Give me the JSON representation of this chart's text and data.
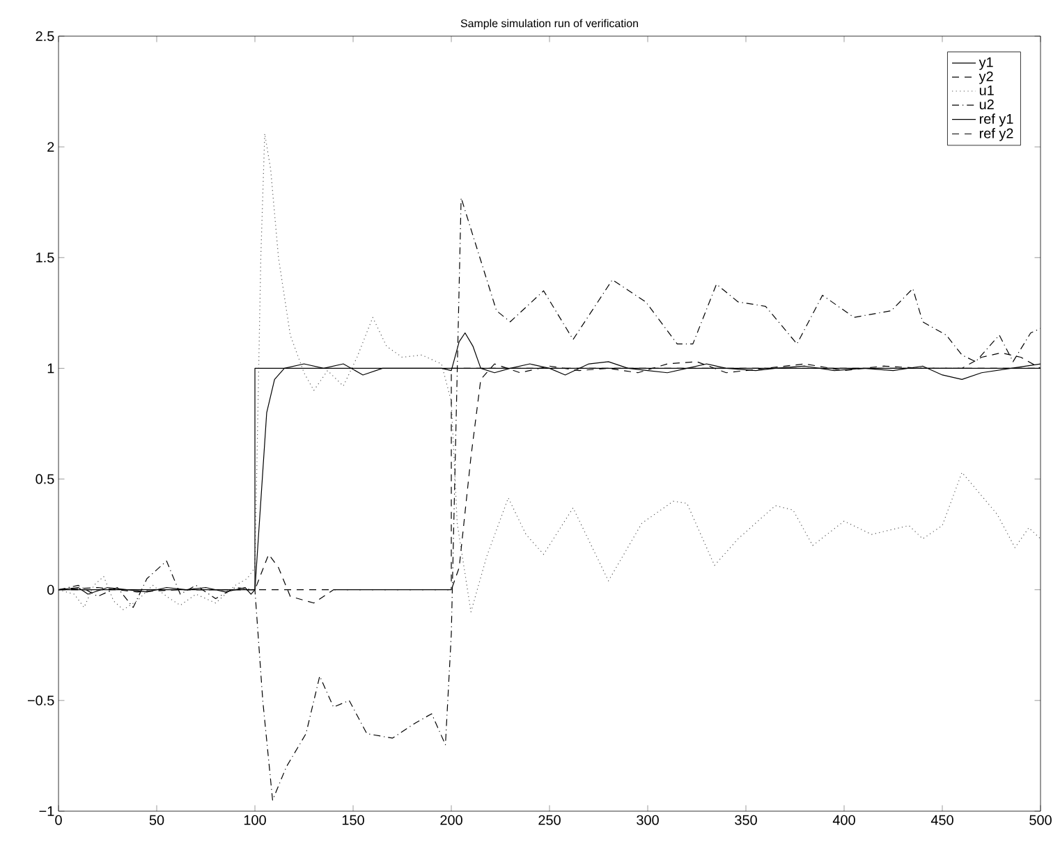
{
  "chart_data": {
    "type": "line",
    "title": "Sample simulation run of verification",
    "xlim": [
      0,
      500
    ],
    "ylim": [
      -1,
      2.5
    ],
    "xticks": [
      0,
      50,
      100,
      150,
      200,
      250,
      300,
      350,
      400,
      450,
      500
    ],
    "yticks": [
      {
        "value": -1,
        "label": "−1"
      },
      {
        "value": -0.5,
        "label": "−0.5"
      },
      0,
      0.5,
      1,
      1.5,
      2,
      2.5
    ],
    "grid": false,
    "legend": "top right",
    "marker": "none",
    "series": [
      {
        "name": "y1",
        "color": "#000000",
        "line_style": "solid",
        "x": [
          0,
          10,
          15,
          25,
          35,
          45,
          55,
          65,
          75,
          85,
          95,
          98,
          100,
          103,
          106,
          110,
          115,
          125,
          135,
          145,
          155,
          165,
          180,
          195,
          200,
          204,
          207,
          211,
          215,
          222,
          230,
          240,
          250,
          258,
          270,
          280,
          290,
          300,
          310,
          320,
          330,
          340,
          355,
          365,
          380,
          395,
          410,
          425,
          440,
          450,
          460,
          470,
          485,
          500
        ],
        "values": [
          0,
          0.01,
          -0.02,
          0.01,
          0,
          -0.01,
          0.01,
          0,
          0.01,
          -0.01,
          0.01,
          -0.02,
          0,
          0.4,
          0.8,
          0.95,
          1.0,
          1.02,
          1.0,
          1.02,
          0.97,
          1.0,
          1.0,
          1.0,
          0.99,
          1.12,
          1.16,
          1.1,
          1.0,
          0.98,
          1.0,
          1.02,
          1.0,
          0.97,
          1.02,
          1.03,
          1.0,
          0.99,
          0.98,
          1.0,
          1.02,
          1.0,
          0.99,
          1.0,
          1.01,
          0.99,
          1.0,
          0.99,
          1.01,
          0.97,
          0.95,
          0.98,
          1.0,
          1.02
        ]
      },
      {
        "name": "y2",
        "color": "#000000",
        "line_style": "dashed",
        "x": [
          0,
          20,
          40,
          60,
          80,
          95,
          100,
          107,
          112,
          118,
          130,
          140,
          160,
          180,
          200,
          204,
          210,
          215,
          222,
          235,
          250,
          265,
          280,
          295,
          310,
          325,
          340,
          360,
          380,
          400,
          420,
          440,
          460,
          470,
          480,
          490,
          500
        ],
        "values": [
          0,
          0.01,
          -0.01,
          0,
          0,
          0,
          0,
          0.16,
          0.1,
          -0.03,
          -0.06,
          0,
          0,
          0,
          0,
          0.1,
          0.6,
          0.95,
          1.02,
          0.98,
          1.01,
          0.99,
          1.0,
          0.98,
          1.02,
          1.03,
          0.98,
          1.0,
          1.02,
          0.99,
          1.01,
          1.0,
          1.0,
          1.05,
          1.07,
          1.05,
          1.0
        ]
      },
      {
        "name": "u1",
        "color": "#555555",
        "line_style": "dotted",
        "x": [
          0,
          8,
          13,
          18,
          23,
          28,
          33,
          40,
          48,
          55,
          62,
          70,
          80,
          90,
          96,
          100,
          103,
          105,
          108,
          112,
          118,
          125,
          130,
          137,
          145,
          152,
          160,
          167,
          175,
          185,
          195,
          200,
          203,
          210,
          218,
          229,
          238,
          247,
          262,
          280,
          297,
          313,
          320,
          334,
          346,
          365,
          374,
          384,
          400,
          414,
          433,
          440,
          450,
          460,
          478,
          487,
          494,
          500
        ],
        "values": [
          0,
          -0.02,
          -0.08,
          0.02,
          0.06,
          -0.05,
          -0.09,
          -0.05,
          0.02,
          -0.03,
          -0.07,
          -0.02,
          -0.06,
          0.02,
          0.05,
          0.1,
          1.5,
          2.06,
          1.9,
          1.5,
          1.15,
          0.98,
          0.9,
          0.99,
          0.92,
          1.05,
          1.23,
          1.1,
          1.05,
          1.06,
          1.02,
          0.85,
          0.3,
          -0.1,
          0.15,
          0.415,
          0.25,
          0.16,
          0.37,
          0.04,
          0.3,
          0.4,
          0.39,
          0.11,
          0.23,
          0.38,
          0.36,
          0.2,
          0.31,
          0.25,
          0.29,
          0.23,
          0.29,
          0.53,
          0.34,
          0.19,
          0.28,
          0.23
        ]
      },
      {
        "name": "u2",
        "color": "#000000",
        "line_style": "dashdot",
        "x": [
          0,
          10,
          20,
          30,
          38,
          45,
          55,
          62,
          70,
          80,
          90,
          100,
          104,
          109,
          116,
          126,
          133,
          140,
          148,
          157,
          170,
          182,
          190,
          197,
          200,
          205,
          223,
          230,
          247,
          262,
          282,
          299,
          315,
          323,
          335,
          346,
          360,
          376,
          389,
          405,
          424,
          435,
          440,
          452,
          460,
          467,
          479,
          486,
          495,
          500
        ],
        "values": [
          0,
          0.02,
          -0.03,
          0.01,
          -0.08,
          0.05,
          0.13,
          -0.02,
          0.02,
          -0.04,
          0.01,
          0,
          -0.5,
          -0.95,
          -0.8,
          -0.65,
          -0.39,
          -0.53,
          -0.5,
          -0.65,
          -0.67,
          -0.6,
          -0.56,
          -0.7,
          -0.2,
          1.77,
          1.26,
          1.21,
          1.35,
          1.13,
          1.4,
          1.3,
          1.11,
          1.11,
          1.38,
          1.3,
          1.28,
          1.11,
          1.33,
          1.23,
          1.26,
          1.36,
          1.21,
          1.15,
          1.06,
          1.03,
          1.15,
          1.03,
          1.16,
          1.18
        ]
      },
      {
        "name": "ref y1",
        "color": "#000000",
        "line_style": "solid",
        "x": [
          0,
          100,
          100,
          500
        ],
        "values": [
          0,
          0,
          1,
          1
        ]
      },
      {
        "name": "ref y2",
        "color": "#000000",
        "line_style": "dashed",
        "x": [
          0,
          200,
          200,
          500
        ],
        "values": [
          0,
          0,
          1,
          1
        ]
      }
    ]
  }
}
